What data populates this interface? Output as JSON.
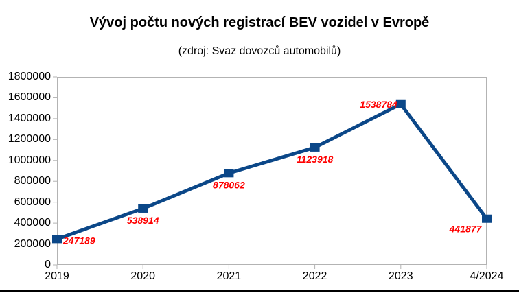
{
  "chart_data": {
    "type": "line",
    "title": "Vývoj počtu nových registrací BEV vozidel v Evropě",
    "subtitle": "(zdroj: Svaz dovozců automobilů)",
    "categories": [
      "2019",
      "2020",
      "2021",
      "2022",
      "2023",
      "4/2024"
    ],
    "values": [
      247189,
      538914,
      878062,
      1123918,
      1538784,
      441877
    ],
    "data_labels": [
      "247189",
      "538914",
      "878062",
      "1123918",
      "1538784",
      "441877"
    ],
    "label_positions": [
      "right",
      "below",
      "below",
      "below",
      "left",
      "below-left"
    ],
    "ylim": [
      0,
      1800000
    ],
    "yticks": [
      0,
      200000,
      400000,
      600000,
      800000,
      1000000,
      1200000,
      1400000,
      1600000,
      1800000
    ],
    "ytick_labels": [
      "0",
      "200000",
      "400000",
      "600000",
      "800000",
      "1000000",
      "1200000",
      "1400000",
      "1600000",
      "1800000"
    ],
    "grid": "off",
    "legend": "none",
    "marker": "square",
    "colors": {
      "series": "#0b4788",
      "data_label": "#ff0000",
      "axis": "#b3b3b3",
      "text": "#000000",
      "background": "#ffffff",
      "bottom_edge": "#000000"
    }
  }
}
